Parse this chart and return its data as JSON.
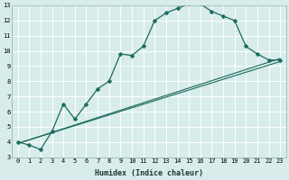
{
  "xlabel": "Humidex (Indice chaleur)",
  "bg_color": "#d8ecec",
  "grid_color": "#ffffff",
  "line_color": "#1a6b5a",
  "line1_x": [
    0,
    1,
    2,
    3,
    4,
    5,
    6,
    7,
    8,
    9,
    10,
    11,
    12,
    13,
    14,
    15,
    16,
    17,
    18,
    19,
    20,
    21,
    22,
    23
  ],
  "line1_y": [
    4.0,
    3.8,
    3.5,
    4.7,
    6.5,
    5.5,
    6.5,
    7.5,
    8.0,
    9.8,
    9.7,
    10.3,
    12.0,
    12.5,
    12.8,
    13.1,
    13.1,
    12.6,
    12.3,
    12.0,
    10.3,
    9.8,
    9.4,
    9.4
  ],
  "line2_x": [
    0,
    23
  ],
  "line2_y": [
    3.9,
    9.3
  ],
  "line3_x": [
    0,
    23
  ],
  "line3_y": [
    3.9,
    9.5
  ],
  "ylim": [
    3,
    13
  ],
  "xlim": [
    -0.5,
    23.5
  ],
  "yticks": [
    3,
    4,
    5,
    6,
    7,
    8,
    9,
    10,
    11,
    12,
    13
  ],
  "xticks": [
    0,
    1,
    2,
    3,
    4,
    5,
    6,
    7,
    8,
    9,
    10,
    11,
    12,
    13,
    14,
    15,
    16,
    17,
    18,
    19,
    20,
    21,
    22,
    23
  ],
  "tick_fontsize": 5.0,
  "xlabel_fontsize": 6.0,
  "ylabel_fontsize": 5.5,
  "linewidth1": 0.9,
  "linewidth2": 0.8,
  "markersize": 2.5
}
